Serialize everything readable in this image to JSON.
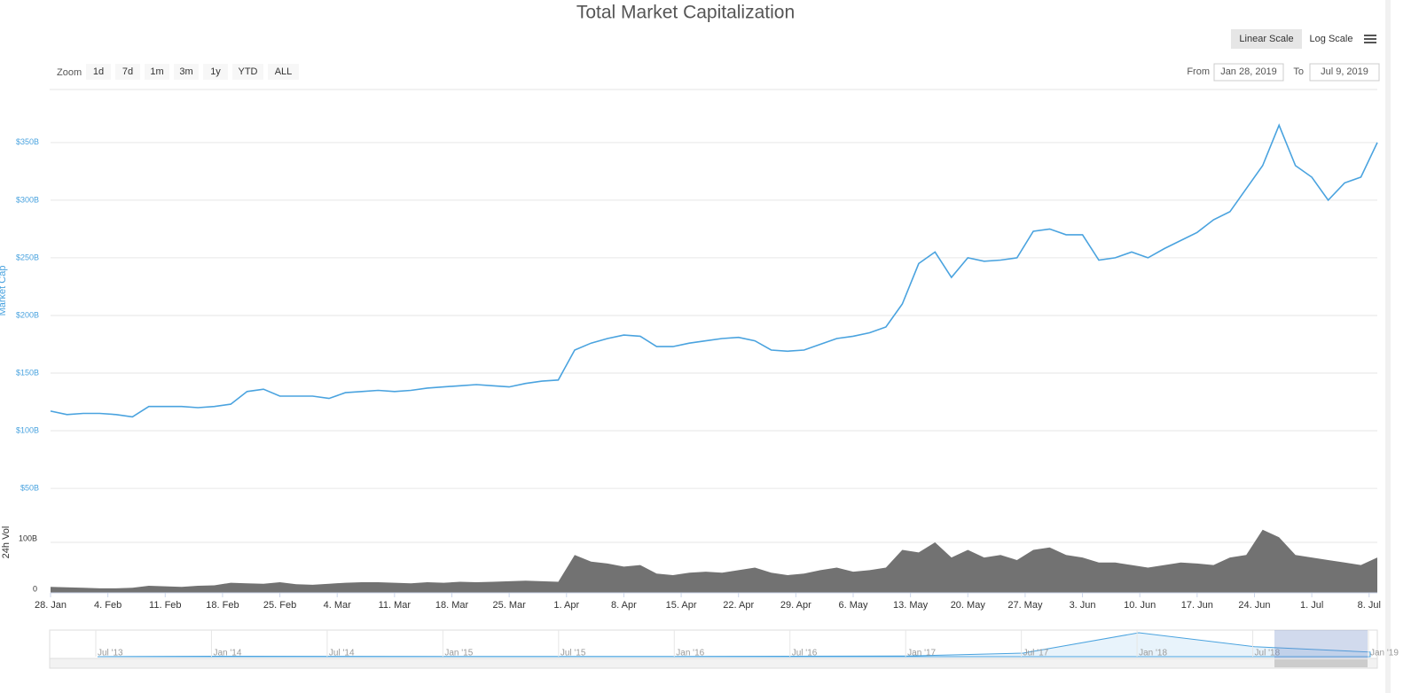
{
  "chart_data": {
    "type": "line",
    "title": "Total Market Capitalization",
    "zoom_label": "Zoom",
    "zoom_buttons": [
      "1d",
      "7d",
      "1m",
      "3m",
      "1y",
      "YTD",
      "ALL"
    ],
    "scale_buttons": [
      "Linear Scale",
      "Log Scale"
    ],
    "from_label": "From",
    "from_value": "Jan 28, 2019",
    "to_label": "To",
    "to_value": "Jul 9, 2019",
    "ylabel": "Market Cap",
    "y2label": "24h Vol",
    "x": [
      "2019-01-28",
      "2019-01-30",
      "2019-02-01",
      "2019-02-03",
      "2019-02-05",
      "2019-02-07",
      "2019-02-09",
      "2019-02-11",
      "2019-02-13",
      "2019-02-15",
      "2019-02-17",
      "2019-02-19",
      "2019-02-21",
      "2019-02-23",
      "2019-02-25",
      "2019-02-27",
      "2019-03-01",
      "2019-03-03",
      "2019-03-05",
      "2019-03-07",
      "2019-03-09",
      "2019-03-11",
      "2019-03-13",
      "2019-03-15",
      "2019-03-17",
      "2019-03-19",
      "2019-03-21",
      "2019-03-23",
      "2019-03-25",
      "2019-03-27",
      "2019-03-29",
      "2019-03-31",
      "2019-04-02",
      "2019-04-04",
      "2019-04-06",
      "2019-04-08",
      "2019-04-10",
      "2019-04-12",
      "2019-04-14",
      "2019-04-16",
      "2019-04-18",
      "2019-04-20",
      "2019-04-22",
      "2019-04-24",
      "2019-04-26",
      "2019-04-28",
      "2019-04-30",
      "2019-05-02",
      "2019-05-04",
      "2019-05-06",
      "2019-05-08",
      "2019-05-10",
      "2019-05-12",
      "2019-05-14",
      "2019-05-16",
      "2019-05-18",
      "2019-05-20",
      "2019-05-22",
      "2019-05-24",
      "2019-05-26",
      "2019-05-28",
      "2019-05-30",
      "2019-06-01",
      "2019-06-03",
      "2019-06-05",
      "2019-06-07",
      "2019-06-09",
      "2019-06-11",
      "2019-06-13",
      "2019-06-15",
      "2019-06-17",
      "2019-06-19",
      "2019-06-21",
      "2019-06-23",
      "2019-06-25",
      "2019-06-27",
      "2019-06-29",
      "2019-07-01",
      "2019-07-03",
      "2019-07-05",
      "2019-07-07",
      "2019-07-09"
    ],
    "series": [
      {
        "color": "#4aa3df",
        "values": [
          117,
          114,
          115,
          115,
          114,
          112,
          121,
          121,
          121,
          120,
          121,
          123,
          134,
          136,
          130,
          130,
          130,
          128,
          133,
          134,
          135,
          134,
          135,
          137,
          138,
          139,
          140,
          139,
          138,
          141,
          143,
          144,
          170,
          176,
          180,
          183,
          182,
          173,
          173,
          176,
          178,
          180,
          181,
          178,
          170,
          169,
          170,
          175,
          180,
          182,
          185,
          190,
          210,
          245,
          255,
          233,
          250,
          247,
          248,
          250,
          273,
          275,
          270,
          270,
          248,
          250,
          255,
          250,
          258,
          265,
          272,
          283,
          290,
          310,
          330,
          365,
          330,
          320,
          300,
          315,
          320,
          350
        ]
      },
      {
        "color": "#727272",
        "axis": "y2",
        "values": [
          12,
          11,
          10,
          9,
          9,
          10,
          14,
          13,
          12,
          14,
          15,
          20,
          19,
          18,
          21,
          17,
          16,
          18,
          20,
          21,
          21,
          20,
          19,
          21,
          20,
          22,
          21,
          22,
          23,
          24,
          23,
          22,
          75,
          62,
          58,
          52,
          55,
          38,
          35,
          40,
          42,
          40,
          45,
          50,
          40,
          35,
          38,
          45,
          50,
          42,
          45,
          50,
          85,
          80,
          100,
          70,
          85,
          70,
          75,
          65,
          85,
          90,
          75,
          70,
          60,
          60,
          55,
          50,
          55,
          60,
          58,
          55,
          70,
          75,
          125,
          110,
          75,
          70,
          65,
          60,
          55,
          70
        ]
      }
    ],
    "ylim": [
      47,
      396
    ],
    "yticks": [
      {
        "value": 50,
        "label": "$50B"
      },
      {
        "value": 100,
        "label": "$100B"
      },
      {
        "value": 150,
        "label": "$150B"
      },
      {
        "value": 200,
        "label": "$200B"
      },
      {
        "value": 250,
        "label": "$250B"
      },
      {
        "value": 300,
        "label": "$300B"
      },
      {
        "value": 350,
        "label": "$350B"
      }
    ],
    "y2lim": [
      0,
      200
    ],
    "y2ticks": [
      0,
      {
        "value": 100,
        "label": "100B"
      }
    ],
    "xlim": [
      "2019-01-28",
      "2019-07-09"
    ],
    "xticks": [
      {
        "value": "2019-01-28",
        "label": "28. Jan"
      },
      {
        "value": "2019-02-04",
        "label": "4. Feb"
      },
      {
        "value": "2019-02-11",
        "label": "11. Feb"
      },
      {
        "value": "2019-02-18",
        "label": "18. Feb"
      },
      {
        "value": "2019-02-25",
        "label": "25. Feb"
      },
      {
        "value": "2019-03-04",
        "label": "4. Mar"
      },
      {
        "value": "2019-03-11",
        "label": "11. Mar"
      },
      {
        "value": "2019-03-18",
        "label": "18. Mar"
      },
      {
        "value": "2019-03-25",
        "label": "25. Mar"
      },
      {
        "value": "2019-04-01",
        "label": "1. Apr"
      },
      {
        "value": "2019-04-08",
        "label": "8. Apr"
      },
      {
        "value": "2019-04-15",
        "label": "15. Apr"
      },
      {
        "value": "2019-04-22",
        "label": "22. Apr"
      },
      {
        "value": "2019-04-29",
        "label": "29. Apr"
      },
      {
        "value": "2019-05-06",
        "label": "6. May"
      },
      {
        "value": "2019-05-13",
        "label": "13. May"
      },
      {
        "value": "2019-05-20",
        "label": "20. May"
      },
      {
        "value": "2019-05-27",
        "label": "27. May"
      },
      {
        "value": "2019-06-03",
        "label": "3. Jun"
      },
      {
        "value": "2019-06-10",
        "label": "10. Jun"
      },
      {
        "value": "2019-06-17",
        "label": "17. Jun"
      },
      {
        "value": "2019-06-24",
        "label": "24. Jun"
      },
      {
        "value": "2019-07-01",
        "label": "1. Jul"
      },
      {
        "value": "2019-07-08",
        "label": "8. Jul"
      }
    ],
    "grid": true,
    "navigator": {
      "categories": [
        "Jul '13",
        "Jan '14",
        "Jul '14",
        "Jan '15",
        "Jul '15",
        "Jan '16",
        "Jul '16",
        "Jan '17",
        "Jul '17",
        "Jan '18",
        "Jul '18",
        "Jan '19"
      ],
      "values": [
        1,
        10,
        8,
        4,
        4,
        6,
        10,
        18,
        90,
        600,
        250,
        115
      ]
    }
  }
}
